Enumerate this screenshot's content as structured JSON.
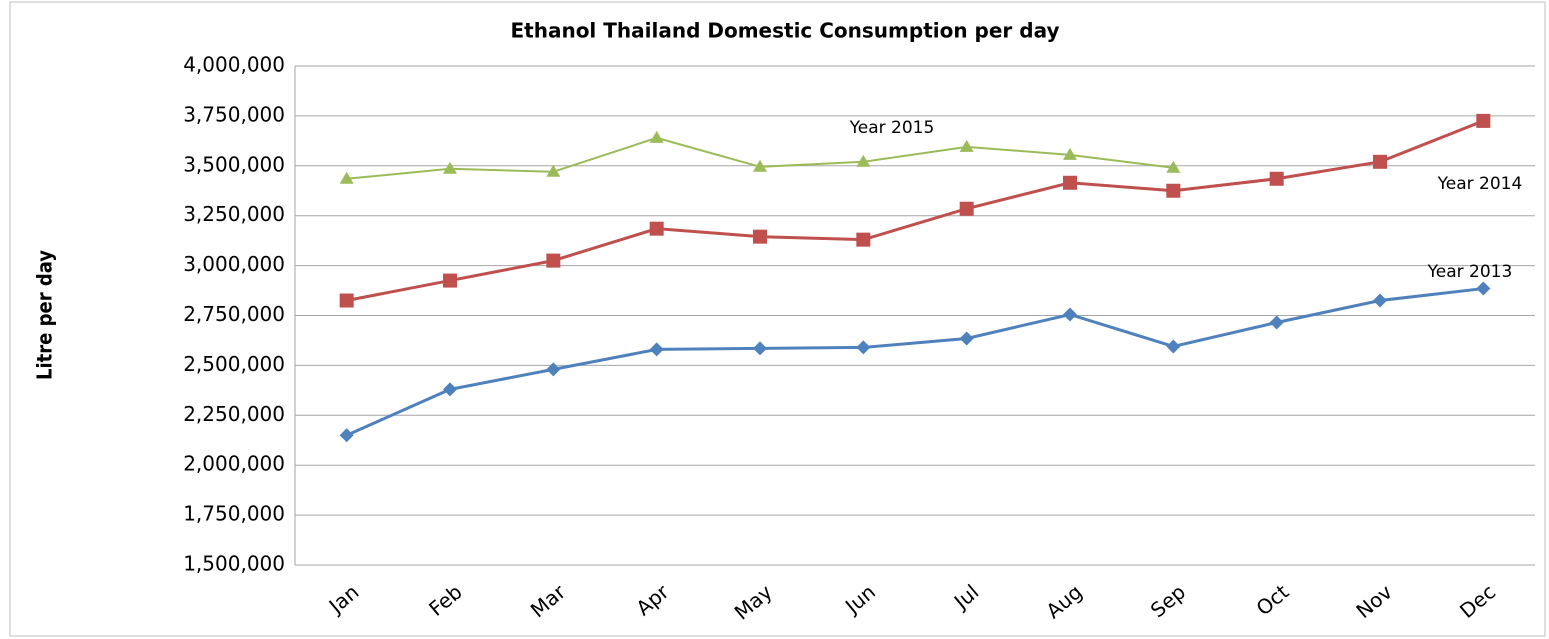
{
  "chart_data": {
    "type": "line",
    "title": "Ethanol Thailand Domestic Consumption per day",
    "y_label": "Litre per day",
    "categories": [
      "Jan",
      "Feb",
      "Mar",
      "Apr",
      "May",
      "Jun",
      "Jul",
      "Aug",
      "Sep",
      "Oct",
      "Nov",
      "Dec"
    ],
    "series": [
      {
        "name": "Year 2013",
        "color": "#4f81bd",
        "marker": "diamond",
        "values": [
          2150000,
          2380000,
          2480000,
          2580000,
          2585000,
          2590000,
          2635000,
          2755000,
          2595000,
          2715000,
          2825000,
          2885000
        ]
      },
      {
        "name": "Year 2014",
        "color": "#c0504d",
        "marker": "square",
        "values": [
          2825000,
          2925000,
          3025000,
          3185000,
          3145000,
          3130000,
          3285000,
          3415000,
          3375000,
          3435000,
          3520000,
          3725000
        ]
      },
      {
        "name": "Year 2015",
        "color": "#9bbb59",
        "marker": "triangle",
        "values": [
          3435000,
          3485000,
          3470000,
          3640000,
          3495000,
          3520000,
          3595000,
          3555000,
          3490000,
          null,
          null,
          null
        ]
      }
    ],
    "ylim": [
      1500000,
      4000000
    ],
    "yticks": [
      {
        "value": 1500000,
        "label": "1,500,000"
      },
      {
        "value": 1750000,
        "label": "1,750,000"
      },
      {
        "value": 2000000,
        "label": "2,000,000"
      },
      {
        "value": 2250000,
        "label": "2,250,000"
      },
      {
        "value": 2500000,
        "label": "2,500,000"
      },
      {
        "value": 2750000,
        "label": "2,750,000"
      },
      {
        "value": 3000000,
        "label": "3,000,000"
      },
      {
        "value": 3250000,
        "label": "3,250,000"
      },
      {
        "value": 3500000,
        "label": "3,500,000"
      },
      {
        "value": 3750000,
        "label": "3,750,000"
      },
      {
        "value": 4000000,
        "label": "4,000,000"
      }
    ],
    "grid": true
  }
}
